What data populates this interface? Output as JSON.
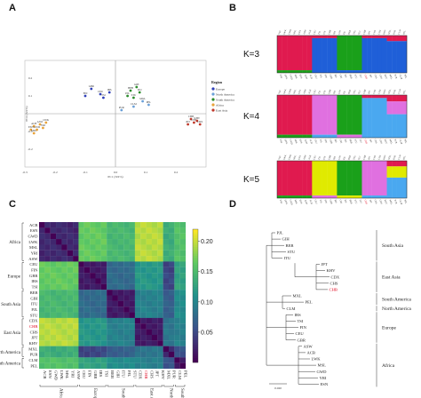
{
  "panels": {
    "a": {
      "letter": "A"
    },
    "b": {
      "letter": "B"
    },
    "c": {
      "letter": "C"
    },
    "d": {
      "letter": "D"
    }
  },
  "colors": {
    "africa": "#e8a33a",
    "europe": "#2f3fb8",
    "east_asia": "#c0392b",
    "south_asia": "#2b8c2b",
    "north_america": "#6aa0d8",
    "admix_red": "#e01a4f",
    "admix_green": "#1aa01a",
    "admix_blue": "#1f5fd8",
    "admix_pink": "#e070e0",
    "admix_lightblue": "#4aa8f0",
    "admix_yellow": "#e0ea00",
    "highlight": "#e0001a"
  },
  "chart_data": [
    {
      "type": "scatter",
      "panel": "A",
      "xlabel": "PC1 (XX%)",
      "ylabel": "PC2 (XX%)",
      "xlim": [
        -0.3,
        0.3
      ],
      "ylim": [
        -0.3,
        0.3
      ],
      "x_ticks": [
        "-0.3",
        "-0.2",
        "-0.1",
        "0.0",
        "0.1",
        "0.2"
      ],
      "y_ticks": [
        "0.2",
        "0.1",
        "-0.1",
        "-0.2"
      ],
      "legend": {
        "title": "Region",
        "placement": "right",
        "entries": [
          "Europe",
          "North America",
          "South America",
          "Africa",
          "East Asia"
        ]
      },
      "points": [
        {
          "label": "CHB",
          "x": 0.25,
          "y": -0.03,
          "group": "east_asia"
        },
        {
          "label": "CHS",
          "x": 0.26,
          "y": -0.05,
          "group": "east_asia"
        },
        {
          "label": "JPT",
          "x": 0.24,
          "y": -0.06,
          "group": "east_asia"
        },
        {
          "label": "KHV",
          "x": 0.27,
          "y": -0.04,
          "group": "east_asia"
        },
        {
          "label": "CDX",
          "x": 0.28,
          "y": -0.06,
          "group": "east_asia"
        },
        {
          "label": "CEU",
          "x": -0.05,
          "y": 0.11,
          "group": "europe"
        },
        {
          "label": "GBR",
          "x": -0.08,
          "y": 0.14,
          "group": "europe"
        },
        {
          "label": "FIN",
          "x": -0.1,
          "y": 0.1,
          "group": "europe"
        },
        {
          "label": "IBS",
          "x": -0.02,
          "y": 0.12,
          "group": "europe"
        },
        {
          "label": "TSI",
          "x": -0.04,
          "y": 0.09,
          "group": "europe"
        },
        {
          "label": "ACB",
          "x": -0.27,
          "y": -0.07,
          "group": "africa"
        },
        {
          "label": "ASW",
          "x": -0.25,
          "y": -0.06,
          "group": "africa"
        },
        {
          "label": "ESN",
          "x": -0.28,
          "y": -0.09,
          "group": "africa"
        },
        {
          "label": "GWD",
          "x": -0.26,
          "y": -0.09,
          "group": "africa"
        },
        {
          "label": "LWK",
          "x": -0.23,
          "y": -0.05,
          "group": "africa"
        },
        {
          "label": "MSL",
          "x": -0.27,
          "y": -0.11,
          "group": "africa"
        },
        {
          "label": "YRI",
          "x": -0.24,
          "y": -0.08,
          "group": "africa"
        },
        {
          "label": "BEB",
          "x": 0.05,
          "y": 0.13,
          "group": "south_asia"
        },
        {
          "label": "GIH",
          "x": 0.07,
          "y": 0.15,
          "group": "south_asia"
        },
        {
          "label": "ITU",
          "x": 0.08,
          "y": 0.12,
          "group": "south_asia"
        },
        {
          "label": "PJL",
          "x": 0.04,
          "y": 0.1,
          "group": "south_asia"
        },
        {
          "label": "STU",
          "x": 0.06,
          "y": 0.09,
          "group": "south_asia"
        },
        {
          "label": "CLM",
          "x": 0.06,
          "y": 0.04,
          "group": "north_america"
        },
        {
          "label": "MXL",
          "x": 0.09,
          "y": 0.07,
          "group": "north_america"
        },
        {
          "label": "PEL",
          "x": 0.11,
          "y": 0.05,
          "group": "north_america"
        },
        {
          "label": "PUR",
          "x": 0.02,
          "y": 0.02,
          "group": "north_america"
        }
      ]
    },
    {
      "type": "bar",
      "subtype": "stacked-admixture",
      "panel": "B",
      "populations": [
        "YRI",
        "LWK",
        "GWD",
        "MSL",
        "ESN",
        "ASW",
        "ACB",
        "CEU",
        "TSI",
        "FIN",
        "GBR",
        "IBS",
        "GIH",
        "PJL",
        "BEB",
        "STU",
        "ITU",
        "CHB",
        "JPT",
        "CHS",
        "CDX",
        "KHV",
        "MXL",
        "PUR",
        "CLM",
        "PEL"
      ],
      "rows": [
        {
          "label": "K=3",
          "components": [
            "admix_red",
            "admix_green",
            "admix_blue"
          ]
        },
        {
          "label": "K=4",
          "components": [
            "admix_red",
            "admix_green",
            "admix_pink",
            "admix_lightblue"
          ]
        },
        {
          "label": "K=5",
          "components": [
            "admix_red",
            "admix_green",
            "admix_yellow",
            "admix_pink",
            "admix_lightblue"
          ]
        }
      ]
    },
    {
      "type": "heatmap",
      "panel": "C",
      "labels": [
        "ACB",
        "ESN",
        "GWD",
        "LWK",
        "MSL",
        "YRI",
        "ASW",
        "CEU",
        "FIN",
        "GBR",
        "IBS",
        "TSI",
        "BEB",
        "GIH",
        "ITU",
        "PJL",
        "STU",
        "CDX",
        "CHB",
        "CHS",
        "JPT",
        "KHV",
        "MXL",
        "PUR",
        "CLM",
        "PEL"
      ],
      "groups": [
        {
          "name": "Africa",
          "start": 0,
          "end": 6
        },
        {
          "name": "Europe",
          "start": 7,
          "end": 11
        },
        {
          "name": "South Asia",
          "start": 12,
          "end": 16
        },
        {
          "name": "East Asia",
          "start": 17,
          "end": 21
        },
        {
          "name": "North America",
          "start": 22,
          "end": 23
        },
        {
          "name": "South America",
          "start": 24,
          "end": 25
        }
      ],
      "highlight_label": "CHB",
      "colorbar": {
        "ticks": [
          "0.20",
          "0.15",
          "0.10",
          "0.05"
        ],
        "min": 0.0,
        "max": 0.22,
        "colormap": "viridis"
      },
      "group_fst": [
        [
          0.02,
          0.16,
          0.14,
          0.19,
          0.13,
          0.15
        ],
        [
          0.16,
          0.01,
          0.07,
          0.11,
          0.04,
          0.12
        ],
        [
          0.14,
          0.07,
          0.01,
          0.09,
          0.06,
          0.1
        ],
        [
          0.19,
          0.11,
          0.09,
          0.01,
          0.08,
          0.09
        ],
        [
          0.13,
          0.04,
          0.06,
          0.08,
          0.02,
          0.05
        ],
        [
          0.15,
          0.12,
          0.1,
          0.09,
          0.05,
          0.01
        ]
      ]
    },
    {
      "type": "tree",
      "panel": "D",
      "leaves": [
        "PJL",
        "GIH",
        "BEB",
        "STU",
        "ITU",
        "JPT",
        "KHV",
        "CDX",
        "CHS",
        "CHB",
        "MXL",
        "PEL",
        "CLM",
        "IBS",
        "TSI",
        "FIN",
        "CEU",
        "GBR",
        "ASW",
        "ACB",
        "LWK",
        "MSL",
        "GWD",
        "YRI",
        "ESN"
      ],
      "highlight_leaf": "CHB",
      "clade_labels": [
        {
          "name": "South Asia"
        },
        {
          "name": "East Asia"
        },
        {
          "name": "South America"
        },
        {
          "name": "North America"
        },
        {
          "name": "Europe"
        },
        {
          "name": "Africa"
        }
      ],
      "scale_label": "0.020"
    }
  ]
}
